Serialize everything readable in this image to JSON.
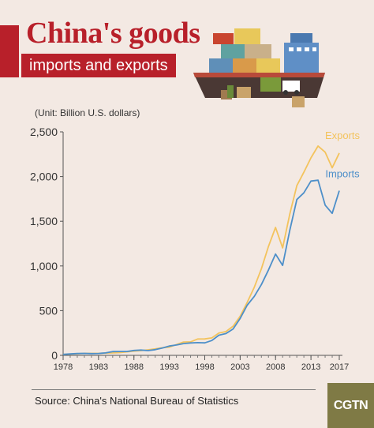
{
  "header": {
    "title": "China's goods",
    "subtitle": "imports and exports"
  },
  "unit_label": "(Unit: Billion U.S. dollars)",
  "source": "Source: China's National Bureau of Statistics",
  "logo": "CGTN",
  "colors": {
    "exports": "#f3c35d",
    "imports": "#4d8fc9",
    "accent": "#b8202a",
    "background": "#f3e9e3"
  },
  "illustration": "cargo-ship-icon",
  "chart_data": {
    "type": "line",
    "title": "China's goods imports and exports",
    "ylabel": "(Unit: Billion U.S. dollars)",
    "xlim": [
      1978,
      2017
    ],
    "ylim": [
      0,
      2500
    ],
    "yticks": [
      0,
      500,
      1000,
      1500,
      2000,
      2500
    ],
    "ytick_labels": [
      "0",
      "500",
      "1,000",
      "1,500",
      "2,000",
      "2,500"
    ],
    "xticks": [
      1978,
      1983,
      1988,
      1993,
      1998,
      2003,
      2008,
      2013,
      2017
    ],
    "grid": false,
    "legend": "inline-end-labels",
    "x": [
      1978,
      1979,
      1980,
      1981,
      1982,
      1983,
      1984,
      1985,
      1986,
      1987,
      1988,
      1989,
      1990,
      1991,
      1992,
      1993,
      1994,
      1995,
      1996,
      1997,
      1998,
      1999,
      2000,
      2001,
      2002,
      2003,
      2004,
      2005,
      2006,
      2007,
      2008,
      2009,
      2010,
      2011,
      2012,
      2013,
      2014,
      2015,
      2016,
      2017
    ],
    "series": [
      {
        "name": "Exports",
        "color": "#f3c35d",
        "values": [
          10,
          14,
          18,
          22,
          22,
          22,
          26,
          27,
          31,
          39,
          48,
          53,
          62,
          72,
          85,
          92,
          121,
          149,
          151,
          183,
          184,
          195,
          249,
          266,
          326,
          438,
          593,
          762,
          969,
          1220,
          1431,
          1202,
          1578,
          1898,
          2049,
          2209,
          2342,
          2273,
          2098,
          2263
        ]
      },
      {
        "name": "Imports",
        "color": "#4d8fc9",
        "values": [
          11,
          16,
          20,
          22,
          19,
          21,
          27,
          42,
          43,
          43,
          55,
          59,
          53,
          64,
          81,
          104,
          116,
          132,
          139,
          142,
          140,
          166,
          225,
          244,
          295,
          413,
          561,
          660,
          792,
          956,
          1133,
          1006,
          1396,
          1743,
          1818,
          1950,
          1959,
          1680,
          1588,
          1842
        ]
      }
    ]
  }
}
